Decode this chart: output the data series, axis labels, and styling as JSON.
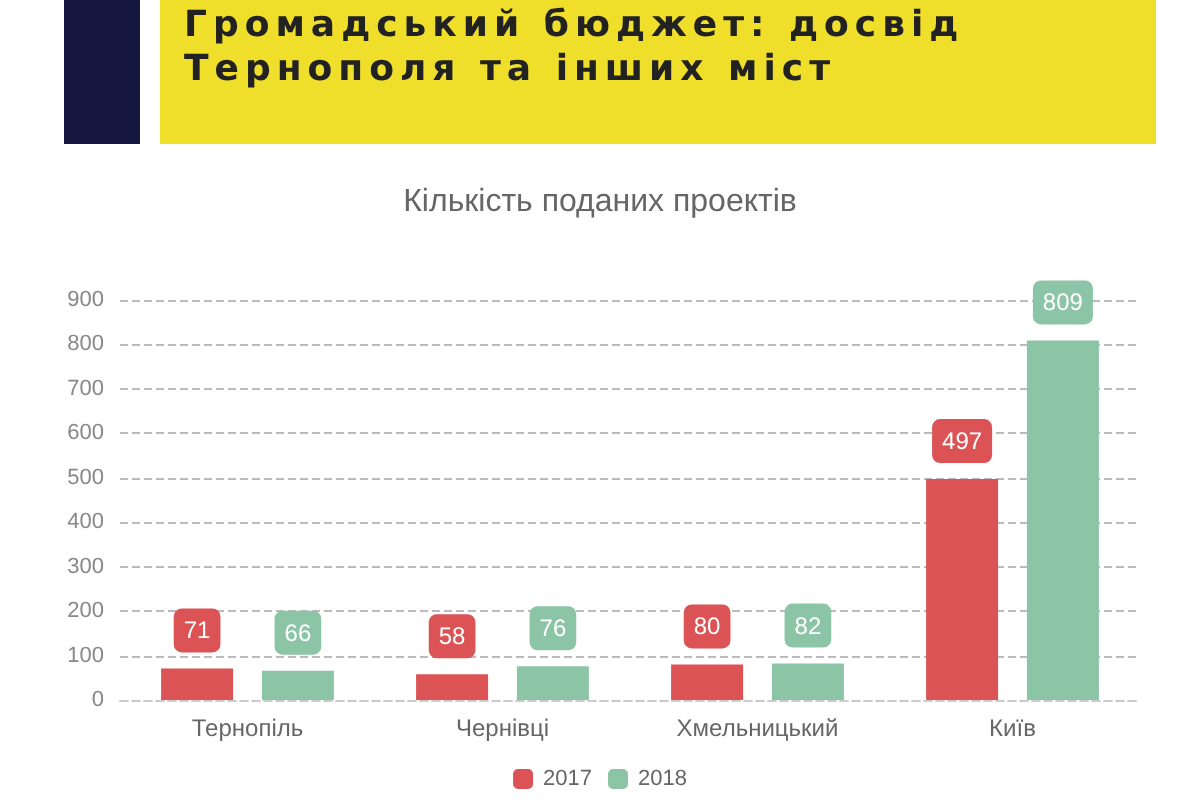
{
  "chart_data": {
    "type": "bar",
    "title": "Громадський бюджет: досвід Тернополя та інших міст",
    "subtitle": "Кількість поданих проектів",
    "categories": [
      "Тернопіль",
      "Чернівці",
      "Хмельницький",
      "Київ"
    ],
    "series": [
      {
        "name": "2017",
        "color": "#db5355",
        "values": [
          71,
          58,
          80,
          497
        ]
      },
      {
        "name": "2018",
        "color": "#8cc5a6",
        "values": [
          66,
          76,
          82,
          809
        ]
      }
    ],
    "ylim": [
      0,
      900
    ],
    "yticks": [
      0,
      100,
      200,
      300,
      400,
      500,
      600,
      700,
      800,
      900
    ],
    "grid": "y",
    "legend": "bottom",
    "data_labels": true
  }
}
